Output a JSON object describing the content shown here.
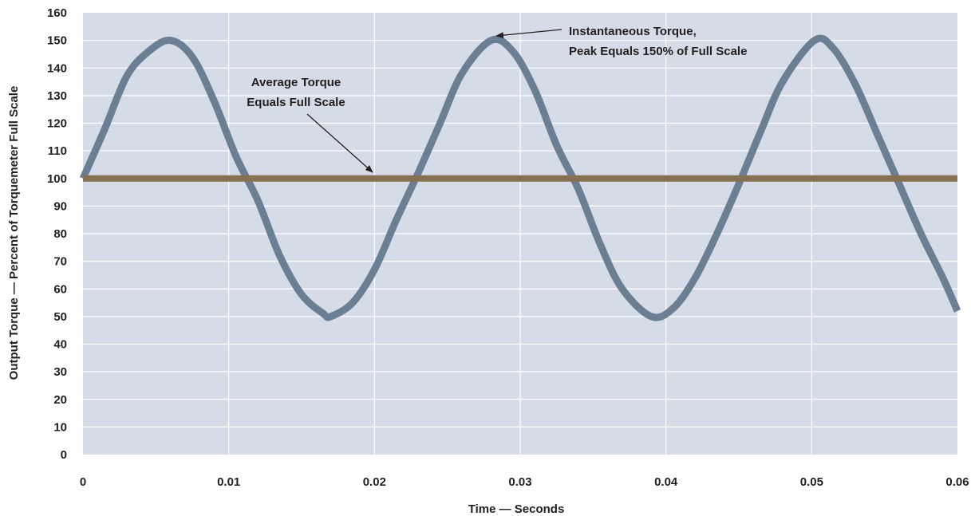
{
  "chart_data": {
    "type": "line",
    "title": "",
    "xlabel": "Time — Seconds",
    "ylabel": "Output Torque — Percent of Torquemeter Full Scale",
    "xlim": [
      0,
      0.06
    ],
    "ylim": [
      0,
      160
    ],
    "grid": true,
    "x_ticks": [
      "0",
      "0.01",
      "0.02",
      "0.03",
      "0.04",
      "0.05",
      "0.06"
    ],
    "y_ticks": [
      "0",
      "10",
      "20",
      "30",
      "40",
      "50",
      "60",
      "70",
      "80",
      "90",
      "100",
      "110",
      "120",
      "130",
      "140",
      "150",
      "160"
    ],
    "series": [
      {
        "color": "#6a7f93",
        "x": [
          0,
          0.0015,
          0.003,
          0.0045,
          0.006,
          0.0075,
          0.009,
          0.0105,
          0.012,
          0.0135,
          0.015,
          0.0165,
          0.017,
          0.0185,
          0.02,
          0.0215,
          0.023,
          0.0245,
          0.026,
          0.028,
          0.0295,
          0.031,
          0.0325,
          0.034,
          0.0355,
          0.037,
          0.039,
          0.0405,
          0.042,
          0.0435,
          0.045,
          0.0465,
          0.048,
          0.0502,
          0.0515,
          0.053,
          0.0545,
          0.056,
          0.0575,
          0.059,
          0.06
        ],
        "values": [
          100,
          118,
          137,
          146,
          150,
          144,
          128,
          108,
          92,
          72,
          58,
          51,
          50,
          55,
          67,
          85,
          102,
          120,
          138,
          150,
          146,
          132,
          112,
          96,
          76,
          60,
          50,
          53,
          64,
          80,
          98,
          117,
          135,
          150,
          147,
          134,
          116,
          98,
          80,
          64,
          52
        ]
      },
      {
        "color": "#87704f",
        "x": [
          0,
          0.06
        ],
        "values": [
          100,
          100
        ]
      }
    ],
    "annotations": [
      {
        "line1": "Instantaneous Torque,",
        "line2": "Peak Equals 150% of Full Scale",
        "target": [
          0.028,
          150
        ]
      },
      {
        "line1": "Average Torque",
        "line2": "Equals Full Scale",
        "target": [
          0.02,
          100
        ]
      }
    ]
  }
}
